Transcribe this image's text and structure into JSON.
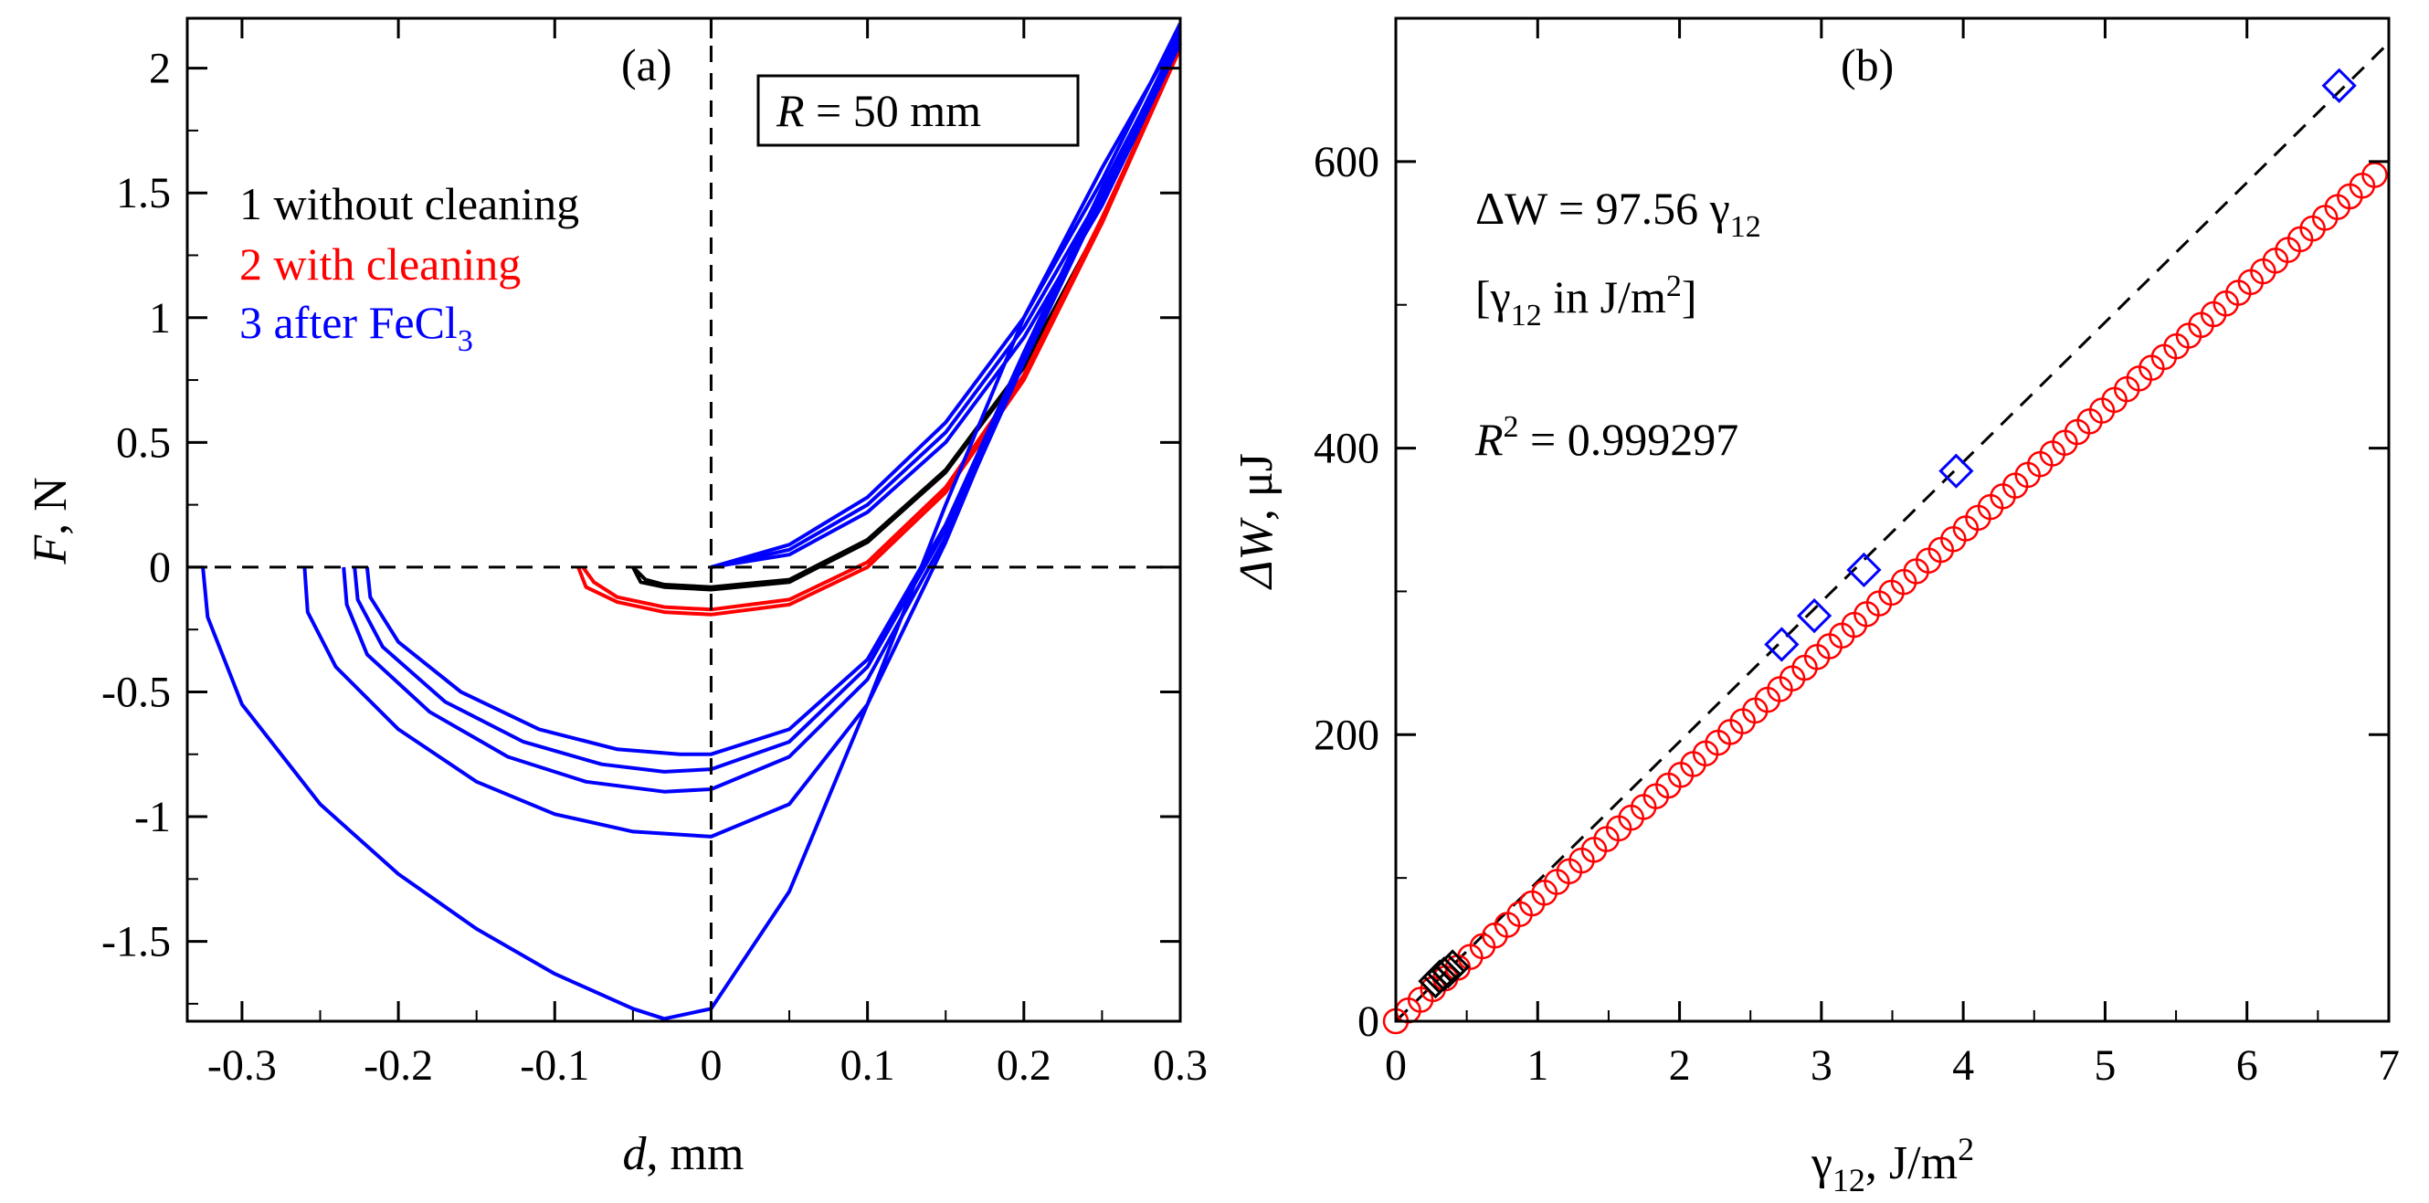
{
  "chart_data": [
    {
      "panel": "(a)",
      "type": "line",
      "xlabel_var": "d",
      "xlabel_unit": ", mm",
      "ylabel_var": "F",
      "ylabel_unit": ", N",
      "xlim": [
        -0.335,
        0.3
      ],
      "ylim": [
        -1.82,
        2.2
      ],
      "xticks": [
        -0.3,
        -0.2,
        -0.1,
        0,
        0.1,
        0.2,
        0.3
      ],
      "xtick_labels": [
        "-0.3",
        "-0.2",
        "-0.1",
        "0",
        "0.1",
        "0.2",
        "0.3"
      ],
      "yticks": [
        -1.5,
        -1,
        -0.5,
        0,
        0.5,
        1,
        1.5,
        2
      ],
      "ytick_labels": [
        "-1.5",
        "-1",
        "-0.5",
        "0",
        "0.5",
        "1",
        "1.5",
        "2"
      ],
      "reference_lines": {
        "x": 0,
        "y": 0
      },
      "radius_box": {
        "var": "R",
        "text": " = 50 mm"
      },
      "legend": [
        {
          "text": "1 without cleaning",
          "color": "#000000"
        },
        {
          "text": "2 with cleaning",
          "color": "#ff0000"
        },
        {
          "text": "3 after FeCl",
          "sub": "3",
          "color": "#0000ff"
        }
      ],
      "series": [
        {
          "name": "1 without cleaning",
          "color": "#000000",
          "x": [
            -0.05,
            -0.045,
            -0.03,
            0,
            0.05,
            0.1,
            0.15,
            0.2,
            0.25,
            0.3
          ],
          "y": [
            0,
            -0.06,
            -0.08,
            -0.09,
            -0.06,
            0.1,
            0.38,
            0.8,
            1.38,
            2.1
          ]
        },
        {
          "name": "1 without cleaning",
          "color": "#000000",
          "x": [
            -0.05,
            -0.042,
            -0.03,
            0,
            0.05,
            0.1,
            0.15,
            0.2,
            0.25,
            0.3
          ],
          "y": [
            0,
            -0.05,
            -0.07,
            -0.08,
            -0.05,
            0.11,
            0.39,
            0.81,
            1.39,
            2.1
          ]
        },
        {
          "name": "2 with cleaning",
          "color": "#ff0000",
          "x": [
            -0.085,
            -0.08,
            -0.06,
            -0.03,
            0,
            0.05,
            0.1,
            0.15,
            0.2,
            0.25,
            0.3
          ],
          "y": [
            0,
            -0.08,
            -0.14,
            -0.18,
            -0.19,
            -0.15,
            0,
            0.3,
            0.75,
            1.38,
            2.08
          ]
        },
        {
          "name": "2 with cleaning",
          "color": "#ff0000",
          "x": [
            -0.082,
            -0.075,
            -0.06,
            -0.03,
            0,
            0.05,
            0.1,
            0.15,
            0.2,
            0.25,
            0.3
          ],
          "y": [
            0,
            -0.06,
            -0.12,
            -0.16,
            -0.17,
            -0.13,
            0.02,
            0.32,
            0.77,
            1.4,
            2.08
          ]
        },
        {
          "name": "3 after FeCl3",
          "color": "#0000ff",
          "x": [
            0,
            0.05,
            0.1,
            0.15,
            0.2,
            0.25,
            0.3
          ],
          "y": [
            0,
            0.05,
            0.22,
            0.5,
            0.92,
            1.45,
            2.1
          ]
        },
        {
          "name": "3 after FeCl3",
          "color": "#0000ff",
          "x": [
            0,
            0.05,
            0.1,
            0.15,
            0.2,
            0.25,
            0.3
          ],
          "y": [
            0,
            0.07,
            0.25,
            0.54,
            0.96,
            1.5,
            2.14
          ]
        },
        {
          "name": "3 after FeCl3",
          "color": "#0000ff",
          "x": [
            0,
            0.05,
            0.1,
            0.15,
            0.2,
            0.25,
            0.3
          ],
          "y": [
            0,
            0.09,
            0.28,
            0.58,
            1.0,
            1.55,
            2.18
          ]
        },
        {
          "name": "3 after FeCl3",
          "color": "#0000ff",
          "x": [
            -0.325,
            -0.322,
            -0.3,
            -0.25,
            -0.2,
            -0.15,
            -0.1,
            -0.05,
            -0.03,
            0,
            0.05,
            0.1,
            0.15,
            0.2,
            0.25,
            0.3
          ],
          "y": [
            0,
            -0.2,
            -0.55,
            -0.95,
            -1.23,
            -1.45,
            -1.63,
            -1.77,
            -1.81,
            -1.77,
            -1.3,
            -0.55,
            0.25,
            1.0,
            1.6,
            2.15
          ]
        },
        {
          "name": "3 after FeCl3",
          "color": "#0000ff",
          "x": [
            -0.26,
            -0.258,
            -0.24,
            -0.2,
            -0.15,
            -0.1,
            -0.05,
            0,
            0.05,
            0.1,
            0.15,
            0.2,
            0.25,
            0.3
          ],
          "y": [
            0,
            -0.18,
            -0.4,
            -0.65,
            -0.86,
            -0.99,
            -1.06,
            -1.08,
            -0.95,
            -0.55,
            0.1,
            0.85,
            1.5,
            2.12
          ]
        },
        {
          "name": "3 after FeCl3",
          "color": "#0000ff",
          "x": [
            -0.235,
            -0.233,
            -0.22,
            -0.18,
            -0.13,
            -0.08,
            -0.03,
            0,
            0.05,
            0.1,
            0.15,
            0.2,
            0.25,
            0.3
          ],
          "y": [
            0,
            -0.15,
            -0.35,
            -0.58,
            -0.76,
            -0.86,
            -0.9,
            -0.89,
            -0.76,
            -0.45,
            0.12,
            0.82,
            1.48,
            2.1
          ]
        },
        {
          "name": "3 after FeCl3",
          "color": "#0000ff",
          "x": [
            -0.228,
            -0.226,
            -0.21,
            -0.17,
            -0.12,
            -0.07,
            -0.03,
            0,
            0.05,
            0.1,
            0.15,
            0.2,
            0.25,
            0.3
          ],
          "y": [
            0,
            -0.13,
            -0.32,
            -0.54,
            -0.7,
            -0.79,
            -0.82,
            -0.81,
            -0.7,
            -0.4,
            0.15,
            0.84,
            1.5,
            2.11
          ]
        },
        {
          "name": "3 after FeCl3",
          "color": "#0000ff",
          "x": [
            -0.22,
            -0.218,
            -0.2,
            -0.16,
            -0.11,
            -0.06,
            -0.02,
            0,
            0.05,
            0.1,
            0.15,
            0.2,
            0.25,
            0.3
          ],
          "y": [
            0,
            -0.12,
            -0.3,
            -0.5,
            -0.65,
            -0.73,
            -0.75,
            -0.75,
            -0.65,
            -0.37,
            0.17,
            0.86,
            1.52,
            2.12
          ]
        }
      ]
    },
    {
      "panel": "(b)",
      "type": "scatter",
      "xlabel_var": "γ",
      "xlabel_sub": "12",
      "xlabel_unit": ", J/m",
      "xlabel_sup": "2",
      "ylabel_var": "ΔW",
      "ylabel_unit": ", μJ",
      "xlim": [
        0,
        7
      ],
      "ylim": [
        0,
        700
      ],
      "xticks": [
        0,
        1,
        2,
        3,
        4,
        5,
        6,
        7
      ],
      "xtick_labels": [
        "0",
        "1",
        "2",
        "3",
        "4",
        "5",
        "6",
        "7"
      ],
      "yticks": [
        0,
        200,
        400,
        600
      ],
      "ytick_labels": [
        "0",
        "200",
        "400",
        "600"
      ],
      "equation": {
        "lhs": "ΔW = 97.56 γ",
        "sub": "12"
      },
      "units_note": {
        "open": "[γ",
        "sub": "12",
        "mid": " in J/m",
        "sup": "2",
        "close": "]"
      },
      "r_squared": {
        "var": "R",
        "sup": "2",
        "text": " = 0.999297"
      },
      "fit": {
        "slope": 97.56,
        "x_range": [
          0,
          7
        ],
        "color": "#000000",
        "style": "dashed"
      },
      "series": [
        {
          "name": "red circles",
          "marker": "circle",
          "color": "#ff0000",
          "x_start": 0,
          "x_end": 6.9,
          "count": 80,
          "slope": 85.6
        },
        {
          "name": "blue diamonds",
          "marker": "diamond",
          "color": "#0000ff",
          "x": [
            2.72,
            2.95,
            3.3,
            3.95,
            6.65
          ],
          "y": [
            263,
            283,
            315,
            384,
            653
          ]
        },
        {
          "name": "black squares",
          "marker": "diamond",
          "color": "#000000",
          "x": [
            0.28,
            0.31,
            0.34,
            0.37,
            0.4
          ],
          "y": [
            28,
            31,
            33,
            35,
            38
          ]
        }
      ]
    }
  ]
}
